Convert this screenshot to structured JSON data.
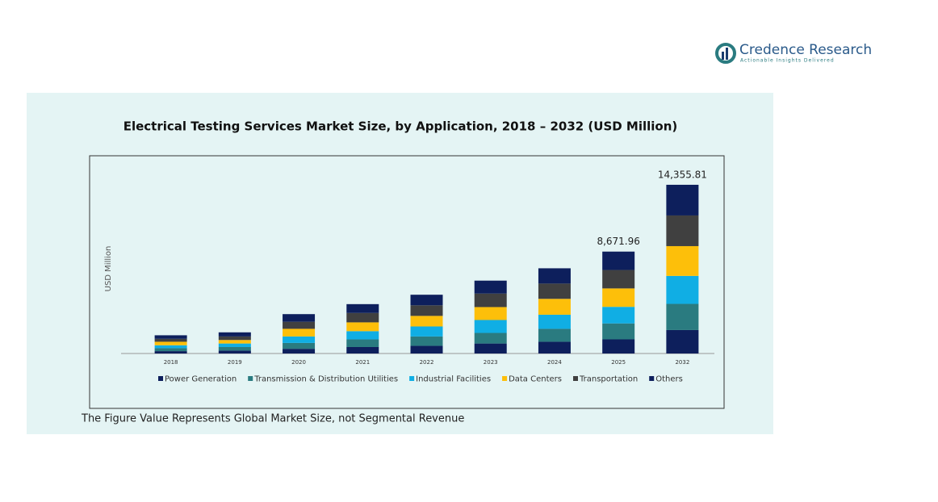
{
  "brand": {
    "name": "Credence Research",
    "tagline": "Actionable Insights Delivered"
  },
  "chart_data": {
    "type": "stacked-bar",
    "title": "Electrical Testing Services Market Size, by Application, 2018 – 2032 (USD Million)",
    "y_label": "USD Million",
    "note": "The Figure Value Represents Global Market Size, not Segmental Revenue",
    "categories": [
      "2018",
      "2019",
      "2020",
      "2021",
      "2022",
      "2023",
      "2024",
      "2025",
      "2032"
    ],
    "ylim": [
      0,
      16000
    ],
    "series": [
      {
        "name": "Power Generation",
        "color": "#0d1f5c",
        "values": [
          200,
          250,
          400,
          550,
          650,
          850,
          1000,
          1202,
          1996
        ]
      },
      {
        "name": "Transmission & Distribution Utilities",
        "color": "#2a7b80",
        "values": [
          250,
          300,
          500,
          650,
          800,
          900,
          1100,
          1358,
          2226
        ]
      },
      {
        "name": "Industrial Facilities",
        "color": "#10aee4",
        "values": [
          250,
          300,
          550,
          700,
          850,
          1100,
          1200,
          1410,
          2380
        ]
      },
      {
        "name": "Data Centers",
        "color": "#fdbf0a",
        "values": [
          300,
          300,
          650,
          750,
          900,
          1100,
          1350,
          1567,
          2533
        ]
      },
      {
        "name": "Transportation",
        "color": "#404040",
        "values": [
          250,
          300,
          600,
          800,
          900,
          1150,
          1300,
          1567,
          2610
        ]
      },
      {
        "name": "Others",
        "color": "#0d1f5c",
        "values": [
          300,
          350,
          650,
          750,
          900,
          1100,
          1300,
          1567,
          2610
        ]
      }
    ],
    "annotations": [
      {
        "category": "2025",
        "value": 8671.96,
        "label": "8,671.96"
      },
      {
        "category": "2032",
        "value": 14355.81,
        "label": "14,355.81"
      }
    ]
  }
}
